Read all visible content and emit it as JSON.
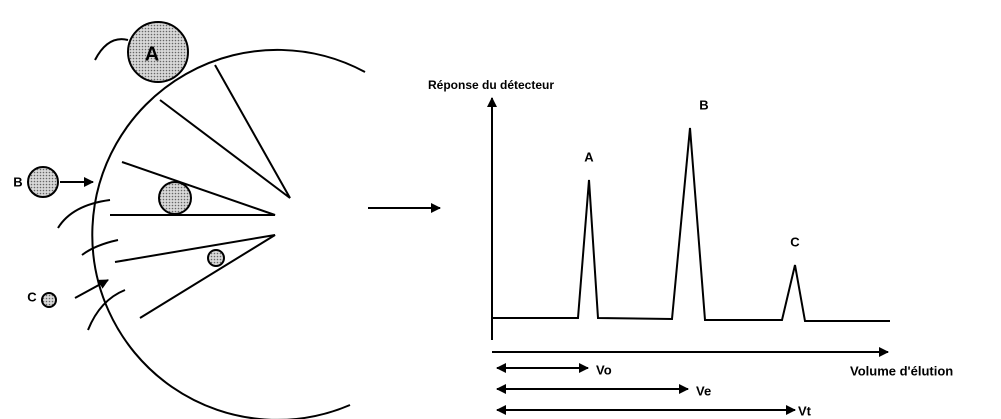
{
  "molecules": [
    {
      "label": "A"
    },
    {
      "label": "B"
    },
    {
      "label": "C"
    }
  ],
  "detector": {
    "y_label": "Réponse du détecteur",
    "x_label": "Volume d'élution",
    "peaks": [
      "A",
      "B",
      "C"
    ],
    "volumes": [
      "Vo",
      "Ve",
      "Vt"
    ]
  }
}
